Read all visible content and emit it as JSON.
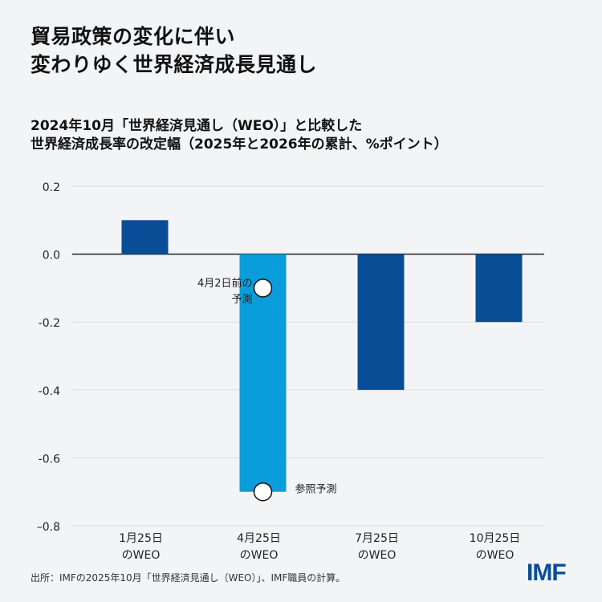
{
  "title_lines": [
    "貿易政策の変化に伴い",
    "変わりゆく世界経済成長見通し"
  ],
  "chart_data": {
    "type": "bar",
    "title": "2024年10月「世界経済見通し（WEO）」と比較した世界経済成長率の改定幅（2025年と2026年の累計、%ポイント）",
    "subtitle_lines": [
      "2024年10月「世界経済見通し（WEO）」と比較した",
      "世界経済成長率の改定幅（2025年と2026年の累計、%ポイント）"
    ],
    "categories": [
      [
        "1月25日",
        "のWEO"
      ],
      [
        "4月25日",
        "のWEO"
      ],
      [
        "7月25日",
        "のWEO"
      ],
      [
        "10月25日",
        "のWEO"
      ]
    ],
    "values": [
      0.1,
      -0.7,
      -0.4,
      -0.2
    ],
    "bar_colors": [
      "#0a4d97",
      "#0a9ddb",
      "#0a4d97",
      "#0a4d97"
    ],
    "ylim": [
      -0.8,
      0.2
    ],
    "yticks": [
      0.2,
      0.0,
      -0.2,
      -0.4,
      -0.6,
      -0.8
    ],
    "ytick_labels": [
      "0.2",
      "0.0",
      "-0.2",
      "-0.4",
      "-0.6",
      "–0.8"
    ],
    "grid": true,
    "annotations": [
      {
        "category_index": 1,
        "value": -0.1,
        "label_lines": [
          "4月2日前の",
          "予測"
        ],
        "side": "left"
      },
      {
        "category_index": 1,
        "value": -0.7,
        "label_lines": [
          "参照予測"
        ],
        "side": "right"
      }
    ]
  },
  "source": "出所：IMFの2025年10月「世界経済見通し（WEO）」、IMF職員の計算。",
  "logo": "IMF"
}
